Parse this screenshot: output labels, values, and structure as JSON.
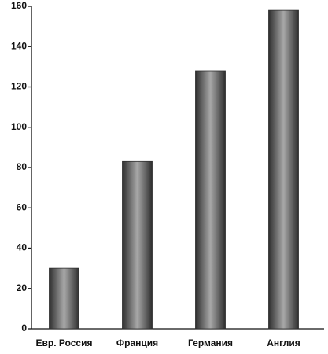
{
  "chart_data": {
    "type": "bar",
    "categories": [
      "Евр. Россия",
      "Франция",
      "Германия",
      "Англия"
    ],
    "values": [
      30,
      83,
      128,
      158
    ],
    "color": "#2e2e2e",
    "ylim": [
      0,
      160
    ],
    "yticks": [
      0,
      20,
      40,
      60,
      80,
      100,
      120,
      140,
      160
    ],
    "grid": false
  }
}
